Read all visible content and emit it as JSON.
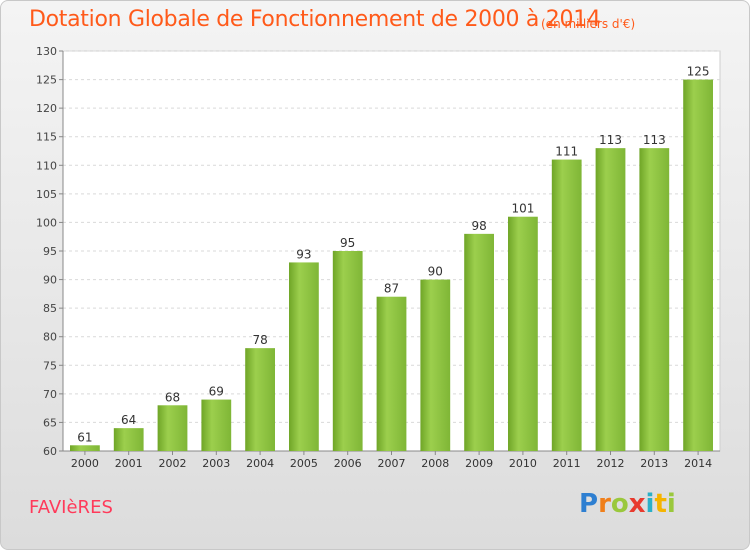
{
  "header": {
    "title": "Dotation Globale de Fonctionnement de 2000 à 2014",
    "subtitle": "(en milliers d'€)"
  },
  "footer": {
    "commune": "FAVIèRES",
    "logo_letters": [
      {
        "ch": "P",
        "color": "#2e7fd1"
      },
      {
        "ch": "r",
        "color": "#f07f1a"
      },
      {
        "ch": "o",
        "color": "#9ac83c"
      },
      {
        "ch": "x",
        "color": "#e83a2e"
      },
      {
        "ch": "i",
        "color": "#2ab0c8"
      },
      {
        "ch": "t",
        "color": "#f5b400"
      },
      {
        "ch": "i",
        "color": "#9ac83c"
      }
    ]
  },
  "chart_data": {
    "type": "bar",
    "categories": [
      "2000",
      "2001",
      "2002",
      "2003",
      "2004",
      "2005",
      "2006",
      "2007",
      "2008",
      "2009",
      "2010",
      "2011",
      "2012",
      "2013",
      "2014"
    ],
    "values": [
      61,
      64,
      68,
      69,
      78,
      93,
      95,
      87,
      90,
      98,
      101,
      111,
      113,
      113,
      125
    ],
    "ylim": [
      60,
      130
    ],
    "yticks": [
      60,
      65,
      70,
      75,
      80,
      85,
      90,
      95,
      100,
      105,
      110,
      115,
      120,
      125,
      130
    ],
    "grid": true,
    "bar_color": "#8cc63f",
    "title": "Dotation Globale de Fonctionnement de 2000 à 2014",
    "subtitle": "(en milliers d'€)",
    "xlabel": "",
    "ylabel": ""
  }
}
